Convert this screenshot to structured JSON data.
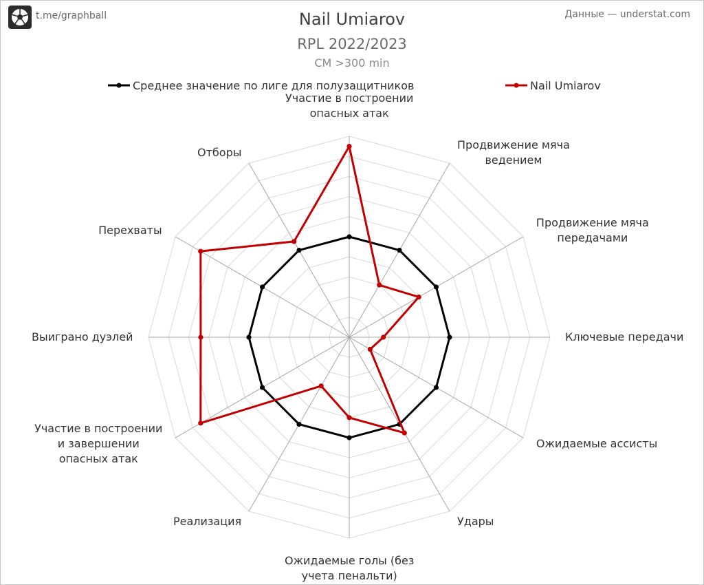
{
  "header": {
    "handle": "t.me/graphball",
    "source": "Данные — understat.com",
    "logo_icon": "football-icon"
  },
  "chart_data": {
    "type": "radar",
    "title": "Nail Umiarov",
    "subtitle": "RPL 2022/2023",
    "subtitle2": "CM >300 min",
    "axes": [
      "Участие в построении опасных атак",
      "Продвижение мяча ведением",
      "Продвижение мяча передачами",
      "Ключевые передачи",
      "Ожидаемые ассисты",
      "Удары",
      "Ожидаемые голы (без учета пенальти)",
      "Реализация",
      "Участие в построении и завершении опасных атак",
      "Выиграно дуэлей",
      "Перехваты",
      "Отборы"
    ],
    "axis_label_lines": [
      [
        "Участие в построении",
        "опасных атак"
      ],
      [
        "Продвижение мяча",
        "ведением"
      ],
      [
        "Продвижение мяча",
        "передачами"
      ],
      [
        "Ключевые передачи"
      ],
      [
        "Ожидаемые ассисты"
      ],
      [
        "Удары"
      ],
      [
        "Ожидаемые голы (без",
        "учета пенальти)"
      ],
      [
        "Реализация"
      ],
      [
        "Участие в построении",
        "и завершении",
        "опасных атак"
      ],
      [
        "Выиграно дуэлей"
      ],
      [
        "Перехваты"
      ],
      [
        "Отборы"
      ]
    ],
    "rlim": [
      0,
      2
    ],
    "grid": true,
    "grid_rings": 10,
    "legend_position": "top",
    "series": [
      {
        "name": "Среднее значение по лиге для полузащитников",
        "color": "#000000",
        "values": [
          1,
          1,
          1,
          1,
          1,
          1,
          1,
          1,
          1,
          1,
          1,
          1
        ]
      },
      {
        "name": "Nail Umiarov",
        "color": "#c00000",
        "values": [
          1.9,
          0.6,
          0.8,
          0.34,
          0.24,
          1.1,
          0.8,
          0.56,
          1.71,
          1.48,
          1.71,
          1.1
        ]
      }
    ]
  }
}
